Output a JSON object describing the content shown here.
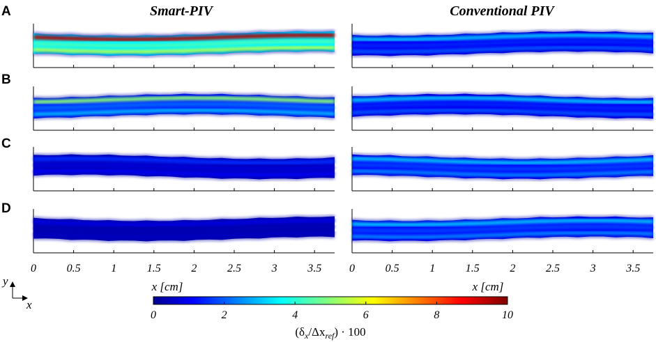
{
  "chart_data": {
    "type": "heatmap",
    "columns": [
      "Smart-PIV",
      "Conventional PIV"
    ],
    "rows": [
      "A",
      "B",
      "C",
      "D"
    ],
    "x_ticks": [
      "0",
      "0.5",
      "1",
      "1.5",
      "2",
      "2.5",
      "3",
      "3.5"
    ],
    "x_tick_values": [
      0,
      0.5,
      1,
      1.5,
      2,
      2.5,
      3,
      3.5
    ],
    "xlim": [
      0,
      3.75
    ],
    "xlabel": "x [cm]",
    "axis_glyph": {
      "y": "y",
      "x": "x"
    },
    "colorbar": {
      "ticks": [
        "0",
        "2",
        "4",
        "6",
        "8",
        "10"
      ],
      "tick_values": [
        0,
        2,
        4,
        6,
        8,
        10
      ],
      "range": [
        0,
        10
      ],
      "label": "(δx/Δxref) · 100",
      "label_parts": {
        "open": "(δ",
        "sub1": "x",
        "mid": "/Δx",
        "sub2": "ref",
        "close": ") · 100"
      },
      "colormap": "jet"
    },
    "panels": [
      {
        "row": "A",
        "method": "Smart-PIV",
        "error_level": {
          "core": 5.5,
          "wall_peak": 9.5,
          "mid": 3.5
        }
      },
      {
        "row": "A",
        "method": "Conventional PIV",
        "error_level": {
          "core": 2.0,
          "wall_peak": 3.0,
          "mid": 1.0
        }
      },
      {
        "row": "B",
        "method": "Smart-PIV",
        "error_level": {
          "core": 3.0,
          "wall_peak": 5.0,
          "mid": 1.5
        }
      },
      {
        "row": "B",
        "method": "Conventional PIV",
        "error_level": {
          "core": 2.0,
          "wall_peak": 3.0,
          "mid": 1.0
        }
      },
      {
        "row": "C",
        "method": "Smart-PIV",
        "error_level": {
          "core": 1.0,
          "wall_peak": 1.5,
          "mid": 0.5
        }
      },
      {
        "row": "C",
        "method": "Conventional PIV",
        "error_level": {
          "core": 2.5,
          "wall_peak": 3.0,
          "mid": 1.2
        }
      },
      {
        "row": "D",
        "method": "Smart-PIV",
        "error_level": {
          "core": 0.5,
          "wall_peak": 0.8,
          "mid": 0.3
        }
      },
      {
        "row": "D",
        "method": "Conventional PIV",
        "error_level": {
          "core": 2.5,
          "wall_peak": 3.0,
          "mid": 1.2
        }
      }
    ]
  }
}
